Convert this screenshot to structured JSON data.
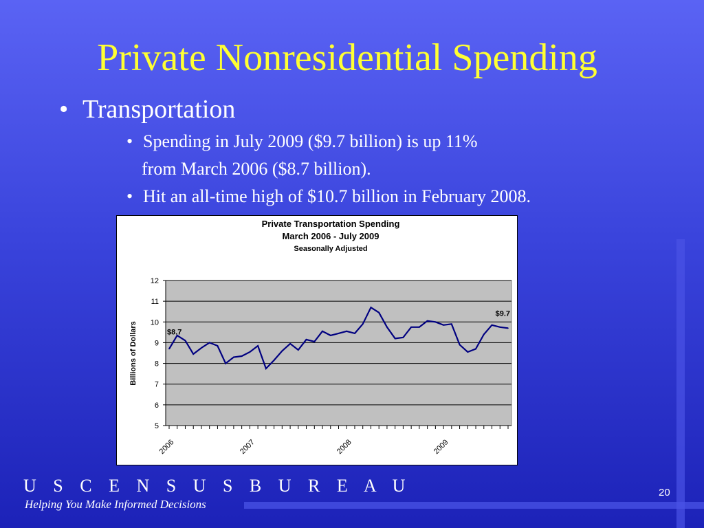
{
  "slide": {
    "title": "Private Nonresidential Spending",
    "bullet_main": "Transportation",
    "bullet_dot": "•",
    "sub1_line1": "Spending in July 2009 ($9.7 billion) is up 11%",
    "sub1_line2": "from March 2006 ($8.7 billion).",
    "sub2": "Hit an all-time high of $10.7 billion in February 2008.",
    "footer_org": "U S C E N S U S B U R E A U",
    "footer_tagline": "Helping You Make Informed Decisions",
    "page_number": "20"
  },
  "chart_data": {
    "type": "line",
    "title": "Private Transportation Spending",
    "subtitle": "March 2006 - July 2009",
    "note": "Seasonally Adjusted",
    "ylabel": "Billions of Dollars",
    "ylim": [
      5,
      12
    ],
    "yticks": [
      "5",
      "6",
      "7",
      "8",
      "9",
      "10",
      "11",
      "12"
    ],
    "xticks": [
      "2006",
      "2007",
      "2008",
      "2009"
    ],
    "grid": true,
    "annotations": [
      "$8.7",
      "$9.7"
    ],
    "colors": {
      "line": "#000080",
      "plot_bg": "#c0c0c0",
      "grid": "#000000"
    },
    "series": [
      {
        "values": [
          8.7,
          9.35,
          9.1,
          8.45,
          8.75,
          9.0,
          8.85,
          8.0,
          8.3,
          8.35,
          8.55,
          8.85,
          7.75,
          8.15,
          8.6,
          8.95,
          8.65,
          9.15,
          9.05,
          9.55,
          9.35,
          9.45,
          9.55,
          9.45,
          9.9,
          10.7,
          10.45,
          9.75,
          9.2,
          9.25,
          9.75,
          9.75,
          10.05,
          10.0,
          9.85,
          9.9,
          8.9,
          8.55,
          8.7,
          9.4,
          9.85,
          9.75,
          9.7
        ]
      }
    ]
  }
}
